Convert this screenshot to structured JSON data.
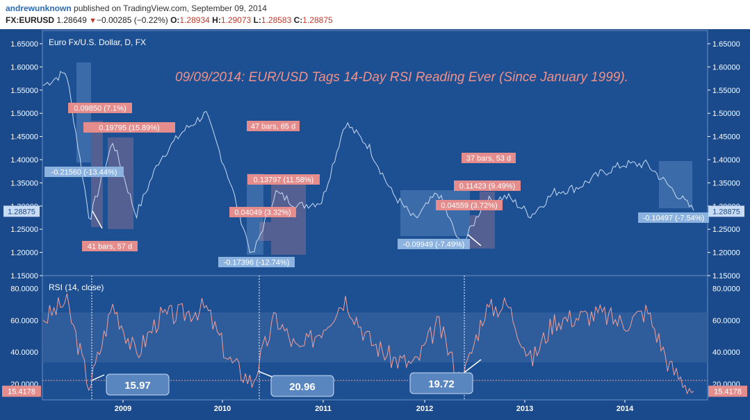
{
  "header": {
    "author": "andrewunknown",
    "published_text": "published on TradingView.com, September 09, 2014",
    "symbol": "FX:EURUSD",
    "last": "1.28649",
    "change_arrow": "▼",
    "change": "−0.00285 (−0.22%)",
    "open_label": "O:",
    "open": "1.28934",
    "high_label": "H:",
    "high": "1.29073",
    "low_label": "L:",
    "low": "1.28583",
    "close_label": "C:",
    "close": "1.28875"
  },
  "colors": {
    "panel_bg": "#1b4a8c",
    "price_line": "#c9dcf5",
    "rsi_line": "#f2a09a",
    "up_label": "#e58d8d",
    "down_label": "#8cb2e0",
    "title_pink": "#f09088",
    "callout": "#5a86c0"
  },
  "main_chart": {
    "instrument": "Euro Fx/U.S. Dollar, D, FX",
    "headline": "09/09/2014: EUR/USD Tags 14-Day RSI Reading Ever (Since January 1999).",
    "current_price_tag": "1.28875",
    "y_ticks": [
      "1.65000",
      "1.60000",
      "1.55000",
      "1.50000",
      "1.45000",
      "1.40000",
      "1.35000",
      "1.30000",
      "1.25000",
      "1.20000",
      "1.15000"
    ],
    "annotations": [
      {
        "text": "0.09850 (7.1%)",
        "kind": "up"
      },
      {
        "text": "0.19795 (15.89%)",
        "kind": "up"
      },
      {
        "text": "-0.21560 (-13.44%)",
        "kind": "down"
      },
      {
        "text": "41 bars, 57 d",
        "kind": "up"
      },
      {
        "text": "47 bars, 65 d",
        "kind": "up"
      },
      {
        "text": "0.13797 (11.58%)",
        "kind": "up"
      },
      {
        "text": "0.04049 (3.32%)",
        "kind": "up"
      },
      {
        "text": "-0.17396 (-12.74%)",
        "kind": "down"
      },
      {
        "text": "37 bars, 53 d",
        "kind": "up"
      },
      {
        "text": "0.11423 (9.49%)",
        "kind": "up"
      },
      {
        "text": "0.04559 (3.72%)",
        "kind": "up"
      },
      {
        "text": "-0.09949 (-7.49%)",
        "kind": "down"
      },
      {
        "text": "-0.10497 (-7.54%)",
        "kind": "down"
      }
    ]
  },
  "rsi_chart": {
    "title": "RSI (14, close)",
    "y_ticks": [
      "80.0000",
      "60.0000",
      "40.0000",
      "20.0000"
    ],
    "current_tag": "15.4178",
    "callouts": [
      "15.97",
      "20.96",
      "19.72"
    ]
  },
  "x_axis": {
    "ticks": [
      "2009",
      "2010",
      "2011",
      "2012",
      "2013",
      "2014"
    ]
  },
  "chart_data": {
    "type": "line",
    "title": "Euro Fx/U.S. Dollar, D, FX",
    "xlabel": "",
    "ylabel": "",
    "x": [
      "2008-04",
      "2008-07",
      "2008-10",
      "2008-12",
      "2009-03",
      "2009-06",
      "2009-09",
      "2009-11",
      "2010-02",
      "2010-06",
      "2010-08",
      "2010-11",
      "2011-01",
      "2011-05",
      "2011-08",
      "2011-10",
      "2012-01",
      "2012-04",
      "2012-07",
      "2012-09",
      "2012-12",
      "2013-03",
      "2013-06",
      "2013-09",
      "2013-12",
      "2014-03",
      "2014-05",
      "2014-07",
      "2014-09"
    ],
    "series": [
      {
        "values": [
          1.56,
          1.59,
          1.27,
          1.44,
          1.28,
          1.4,
          1.46,
          1.5,
          1.36,
          1.19,
          1.33,
          1.3,
          1.31,
          1.48,
          1.43,
          1.33,
          1.27,
          1.33,
          1.21,
          1.31,
          1.32,
          1.28,
          1.33,
          1.34,
          1.37,
          1.39,
          1.39,
          1.34,
          1.29
        ]
      },
      {
        "values": [
          60,
          72,
          18,
          70,
          38,
          62,
          64,
          68,
          35,
          21,
          62,
          40,
          55,
          74,
          48,
          36,
          32,
          58,
          20,
          66,
          70,
          34,
          60,
          62,
          64,
          58,
          66,
          30,
          15.4
        ]
      }
    ],
    "price_ylim": [
      1.15,
      1.65
    ],
    "rsi_ylim": [
      10,
      88
    ],
    "rsi_band": [
      30,
      70
    ],
    "grid": false
  }
}
